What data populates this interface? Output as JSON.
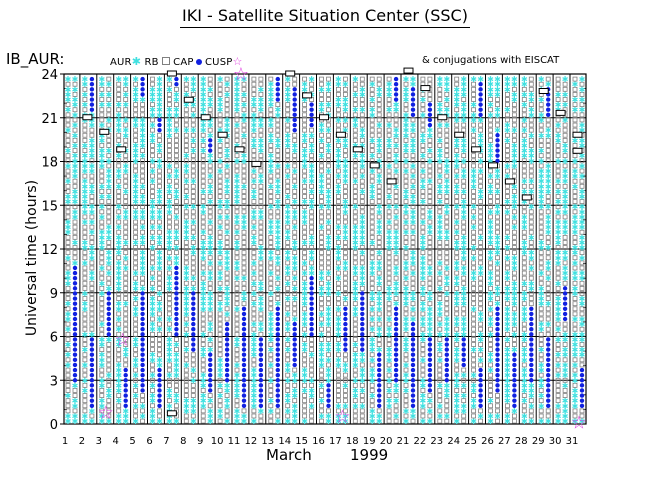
{
  "header": {
    "title": "IKI - Satellite Situation Center (SSC)",
    "series_label": "IB_AUR:",
    "note": "& conjugations with EISCAT"
  },
  "legend": {
    "items": [
      {
        "label": "AUR",
        "symbol": "cyan-star",
        "color": "#40e0e0"
      },
      {
        "label": "RB",
        "symbol": "gray-square",
        "color": "#808080"
      },
      {
        "label": "CAP",
        "symbol": "blue-dot",
        "color": "#1020e0"
      },
      {
        "label": "CUSP",
        "symbol": "magenta-star",
        "color": "#e040e0"
      }
    ]
  },
  "chart_data": {
    "type": "scatter",
    "title": "IKI - Satellite Situation Center (SSC)",
    "xlabel": "March",
    "xlabel_year": "1999",
    "ylabel": "Universal time (hours)",
    "xlim": [
      1,
      31
    ],
    "ylim": [
      0,
      24
    ],
    "x_ticks": [
      1,
      2,
      3,
      4,
      5,
      6,
      7,
      8,
      9,
      10,
      11,
      12,
      13,
      14,
      15,
      16,
      17,
      18,
      19,
      20,
      21,
      22,
      23,
      24,
      25,
      26,
      27,
      28,
      29,
      30,
      31
    ],
    "y_ticks": [
      0,
      3,
      6,
      9,
      12,
      15,
      18,
      21,
      24
    ],
    "y_tick_labels": [
      "0",
      "3",
      "6",
      "9",
      "12",
      "15",
      "18",
      "21",
      "24"
    ],
    "columns_per_day": 2,
    "categories": [
      "AUR",
      "RB",
      "CAP",
      "CUSP"
    ],
    "cap_segments": [
      {
        "day": 1,
        "ranges": [
          [
            3,
            11
          ]
        ]
      },
      {
        "day": 2,
        "ranges": [
          [
            1,
            6
          ],
          [
            21.5,
            24
          ]
        ]
      },
      {
        "day": 3,
        "ranges": [
          [
            6,
            9
          ]
        ]
      },
      {
        "day": 4,
        "ranges": [
          [
            1,
            4
          ]
        ]
      },
      {
        "day": 5,
        "ranges": [
          [
            2,
            9
          ],
          [
            22.5,
            24
          ]
        ]
      },
      {
        "day": 6,
        "ranges": [
          [
            1,
            4
          ],
          [
            20,
            21
          ]
        ]
      },
      {
        "day": 7,
        "ranges": [
          [
            6,
            11
          ],
          [
            23,
            24
          ]
        ]
      },
      {
        "day": 8,
        "ranges": [
          [
            5,
            9
          ]
        ]
      },
      {
        "day": 9,
        "ranges": [
          [
            2,
            5
          ],
          [
            18.5,
            19.5
          ]
        ]
      },
      {
        "day": 10,
        "ranges": [
          [
            3,
            7
          ]
        ]
      },
      {
        "day": 11,
        "ranges": [
          [
            1,
            8
          ]
        ]
      },
      {
        "day": 12,
        "ranges": [
          [
            1,
            6
          ]
        ]
      },
      {
        "day": 13,
        "ranges": [
          [
            1,
            8
          ],
          [
            22,
            24
          ]
        ]
      },
      {
        "day": 14,
        "ranges": [
          [
            4,
            7
          ],
          [
            20,
            23
          ]
        ]
      },
      {
        "day": 15,
        "ranges": [
          [
            6,
            10
          ],
          [
            20.5,
            22
          ]
        ]
      },
      {
        "day": 16,
        "ranges": [
          [
            1,
            3
          ]
        ]
      },
      {
        "day": 17,
        "ranges": [
          [
            5,
            8
          ]
        ]
      },
      {
        "day": 18,
        "ranges": [
          [
            5,
            9
          ]
        ]
      },
      {
        "day": 19,
        "ranges": [
          [
            1,
            5
          ]
        ]
      },
      {
        "day": 20,
        "ranges": [
          [
            3,
            8
          ],
          [
            22,
            24
          ]
        ]
      },
      {
        "day": 21,
        "ranges": [
          [
            1,
            7
          ],
          [
            21,
            23
          ]
        ]
      },
      {
        "day": 22,
        "ranges": [
          [
            2,
            6
          ],
          [
            20.5,
            22
          ]
        ]
      },
      {
        "day": 23,
        "ranges": [
          [
            3,
            6
          ]
        ]
      },
      {
        "day": 24,
        "ranges": [
          [
            4,
            6
          ]
        ]
      },
      {
        "day": 25,
        "ranges": [
          [
            1,
            4
          ],
          [
            21,
            23.5
          ]
        ]
      },
      {
        "day": 26,
        "ranges": [
          [
            2,
            8
          ],
          [
            18,
            20
          ]
        ]
      },
      {
        "day": 27,
        "ranges": [
          [
            1,
            5
          ]
        ]
      },
      {
        "day": 28,
        "ranges": [
          [
            3,
            8
          ]
        ]
      },
      {
        "day": 29,
        "ranges": [
          [
            1,
            6
          ],
          [
            21,
            23
          ]
        ]
      },
      {
        "day": 30,
        "ranges": [
          [
            7,
            9.5
          ]
        ]
      },
      {
        "day": 31,
        "ranges": [
          [
            1,
            4
          ]
        ]
      }
    ],
    "conjugations": [
      {
        "day": 2,
        "ut": 21.0
      },
      {
        "day": 3,
        "ut": 20.0
      },
      {
        "day": 4,
        "ut": 18.8
      },
      {
        "day": 7,
        "ut": 24.0
      },
      {
        "day": 7,
        "ut": 0.7
      },
      {
        "day": 8,
        "ut": 22.2
      },
      {
        "day": 9,
        "ut": 21.0
      },
      {
        "day": 10,
        "ut": 19.8
      },
      {
        "day": 11,
        "ut": 18.8
      },
      {
        "day": 12,
        "ut": 17.8
      },
      {
        "day": 14,
        "ut": 24.0
      },
      {
        "day": 15,
        "ut": 22.5
      },
      {
        "day": 16,
        "ut": 21.0
      },
      {
        "day": 17,
        "ut": 19.8
      },
      {
        "day": 18,
        "ut": 18.8
      },
      {
        "day": 19,
        "ut": 17.7
      },
      {
        "day": 20,
        "ut": 16.6
      },
      {
        "day": 21,
        "ut": 24.2
      },
      {
        "day": 22,
        "ut": 23.0
      },
      {
        "day": 23,
        "ut": 21.0
      },
      {
        "day": 24,
        "ut": 19.8
      },
      {
        "day": 25,
        "ut": 18.8
      },
      {
        "day": 26,
        "ut": 17.7
      },
      {
        "day": 27,
        "ut": 16.6
      },
      {
        "day": 28,
        "ut": 15.5
      },
      {
        "day": 29,
        "ut": 22.8
      },
      {
        "day": 30,
        "ut": 21.3
      },
      {
        "day": 31,
        "ut": 19.8
      },
      {
        "day": 31,
        "ut": 18.7
      }
    ],
    "cusp_events": [
      {
        "day": 3,
        "ut": 0.8
      },
      {
        "day": 4,
        "ut": 5.8
      },
      {
        "day": 11,
        "ut": 24.0
      },
      {
        "day": 17,
        "ut": 0.5
      },
      {
        "day": 31,
        "ut": 0.1
      }
    ]
  }
}
